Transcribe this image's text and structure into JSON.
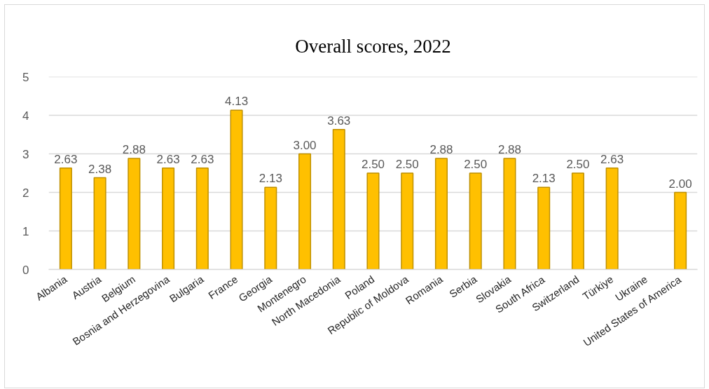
{
  "chart_data": {
    "type": "bar",
    "title": "Overall scores, 2022",
    "categories": [
      "Albania",
      "Austria",
      "Belgium",
      "Bosnia and Herzegovina",
      "Bulgaria",
      "France",
      "Georgia",
      "Montenegro",
      "North Macedonia",
      "Poland",
      "Republic of Moldova",
      "Romania",
      "Serbia",
      "Slovakia",
      "South Africa",
      "Switzerland",
      "Türkiye",
      "Ukraine",
      "United States of America"
    ],
    "values": [
      2.63,
      2.38,
      2.88,
      2.63,
      2.63,
      4.13,
      2.13,
      3.0,
      3.63,
      2.5,
      2.5,
      2.88,
      2.5,
      2.88,
      2.13,
      2.5,
      2.63,
      null,
      2.0
    ],
    "value_labels": [
      "2.63",
      "2.38",
      "2.88",
      "2.63",
      "2.63",
      "4.13",
      "2.13",
      "3.00",
      "3.63",
      "2.50",
      "2.50",
      "2.88",
      "2.50",
      "2.88",
      "2.13",
      "2.50",
      "2.63",
      null,
      "2.00"
    ],
    "color": "#ffc000",
    "ylim": [
      0,
      5
    ],
    "yticks": [
      0,
      1,
      2,
      3,
      4,
      5
    ],
    "grid": "y"
  }
}
